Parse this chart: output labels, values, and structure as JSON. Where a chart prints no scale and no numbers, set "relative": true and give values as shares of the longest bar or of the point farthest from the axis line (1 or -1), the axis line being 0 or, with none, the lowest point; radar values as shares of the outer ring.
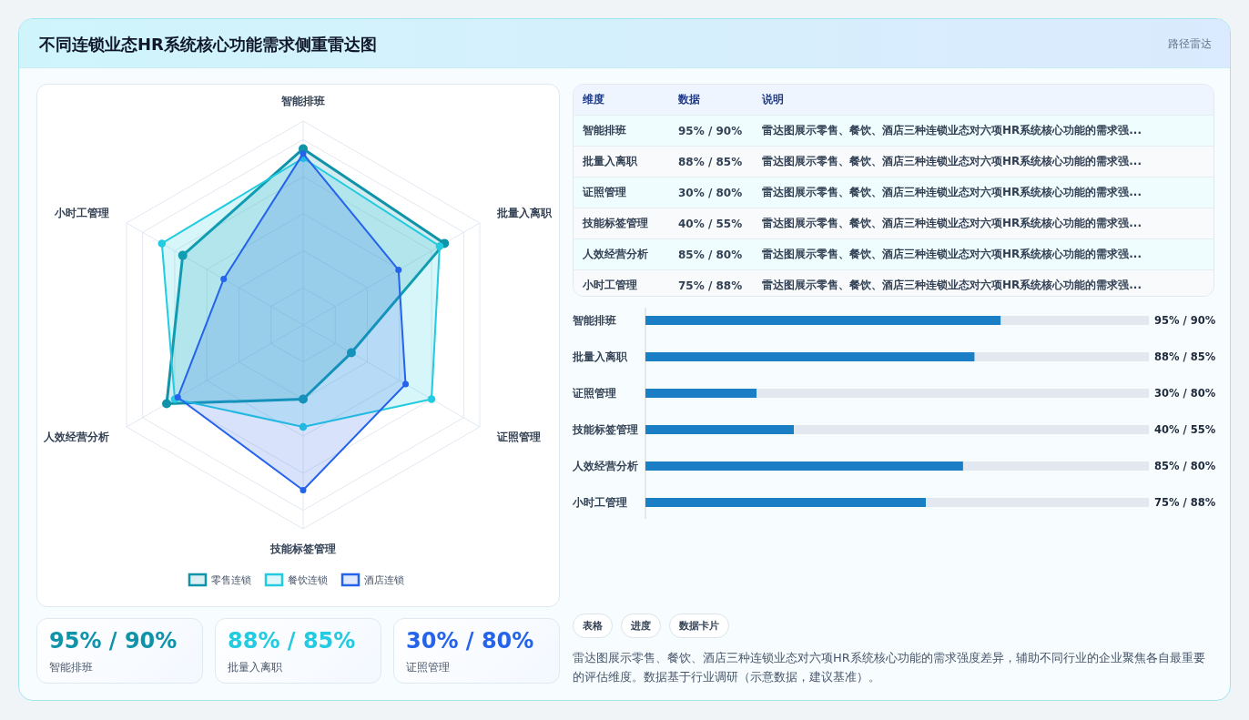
{
  "chart_data": [
    {
      "type": "other",
      "title": "不同连锁业态HR系统核心功能需求侧重雷达图",
      "annotations": [
        "路径雷达"
      ]
    },
    {
      "type": "radar",
      "relative": true,
      "legend": "bottom",
      "marker": "circle",
      "categories": [
        "智能排班",
        "批量入离职",
        "证照管理",
        "技能标签管理",
        "人效经营分析",
        "小时工管理"
      ],
      "series": [
        {
          "name": "零售连锁",
          "color": "#0e93a8",
          "values": [
            0.864,
            0.8,
            0.273,
            0.364,
            0.773,
            0.682
          ]
        },
        {
          "name": "餐饮连锁",
          "color": "#22cbe0",
          "values": [
            0.818,
            0.773,
            0.727,
            0.5,
            0.727,
            0.8
          ]
        },
        {
          "name": "酒店连锁",
          "color": "#2563eb",
          "values": [
            0.84,
            0.54,
            0.58,
            0.81,
            0.71,
            0.45
          ]
        }
      ]
    },
    {
      "type": "other",
      "annotations": [
        "维度",
        "数据",
        "说明",
        "智能排班",
        "95% / 90%",
        "雷达图展示零售、餐饮、酒店三种连锁业态对六项HR系统核心功能的需求强...",
        "批量入离职",
        "88% / 85%",
        "雷达图展示零售、餐饮、酒店三种连锁业态对六项HR系统核心功能的需求强...",
        "证照管理",
        "30% / 80%",
        "雷达图展示零售、餐饮、酒店三种连锁业态对六项HR系统核心功能的需求强...",
        "技能标签管理",
        "40% / 55%",
        "雷达图展示零售、餐饮、酒店三种连锁业态对六项HR系统核心功能的需求强...",
        "人效经营分析",
        "85% / 80%",
        "雷达图展示零售、餐饮、酒店三种连锁业态对六项HR系统核心功能的需求强...",
        "小时工管理",
        "75% / 88%",
        "雷达图展示零售、餐饮、酒店三种连锁业态对六项HR系统核心功能的需求强..."
      ]
    },
    {
      "type": "bar",
      "orientation": "horizontal",
      "stacked": true,
      "relative": true,
      "categories": [
        "智能排班",
        "批量入离职",
        "证照管理",
        "技能标签管理",
        "人效经营分析",
        "小时工管理"
      ],
      "series": [
        {
          "color": "#1a7fc4",
          "values": [
            0.706,
            0.654,
            0.221,
            0.295,
            0.631,
            0.557
          ]
        },
        {
          "color": "#e2e8f0",
          "values": [
            0.294,
            0.346,
            0.779,
            0.705,
            0.369,
            0.443
          ]
        }
      ],
      "annotations": [
        "95% / 90%",
        "88% / 85%",
        "30% / 80%",
        "40% / 55%",
        "85% / 80%",
        "75% / 88%"
      ]
    },
    {
      "type": "other",
      "annotations": [
        "95% / 90%",
        "智能排班",
        "88% / 85%",
        "批量入离职",
        "30% / 80%",
        "证照管理"
      ],
      "colors": [
        "#0e93a8",
        "#22cbe0",
        "#2563eb"
      ]
    },
    {
      "type": "other",
      "annotations": [
        "表格",
        "进度",
        "数据卡片",
        "雷达图展示零售、餐饮、酒店三种连锁业态对六项HR系统核心功能的需求强度差异，辅助不同行业的企业聚焦各自最重要的评估维度。数据基于行业调研（示意数据，建议基准）。"
      ]
    }
  ]
}
